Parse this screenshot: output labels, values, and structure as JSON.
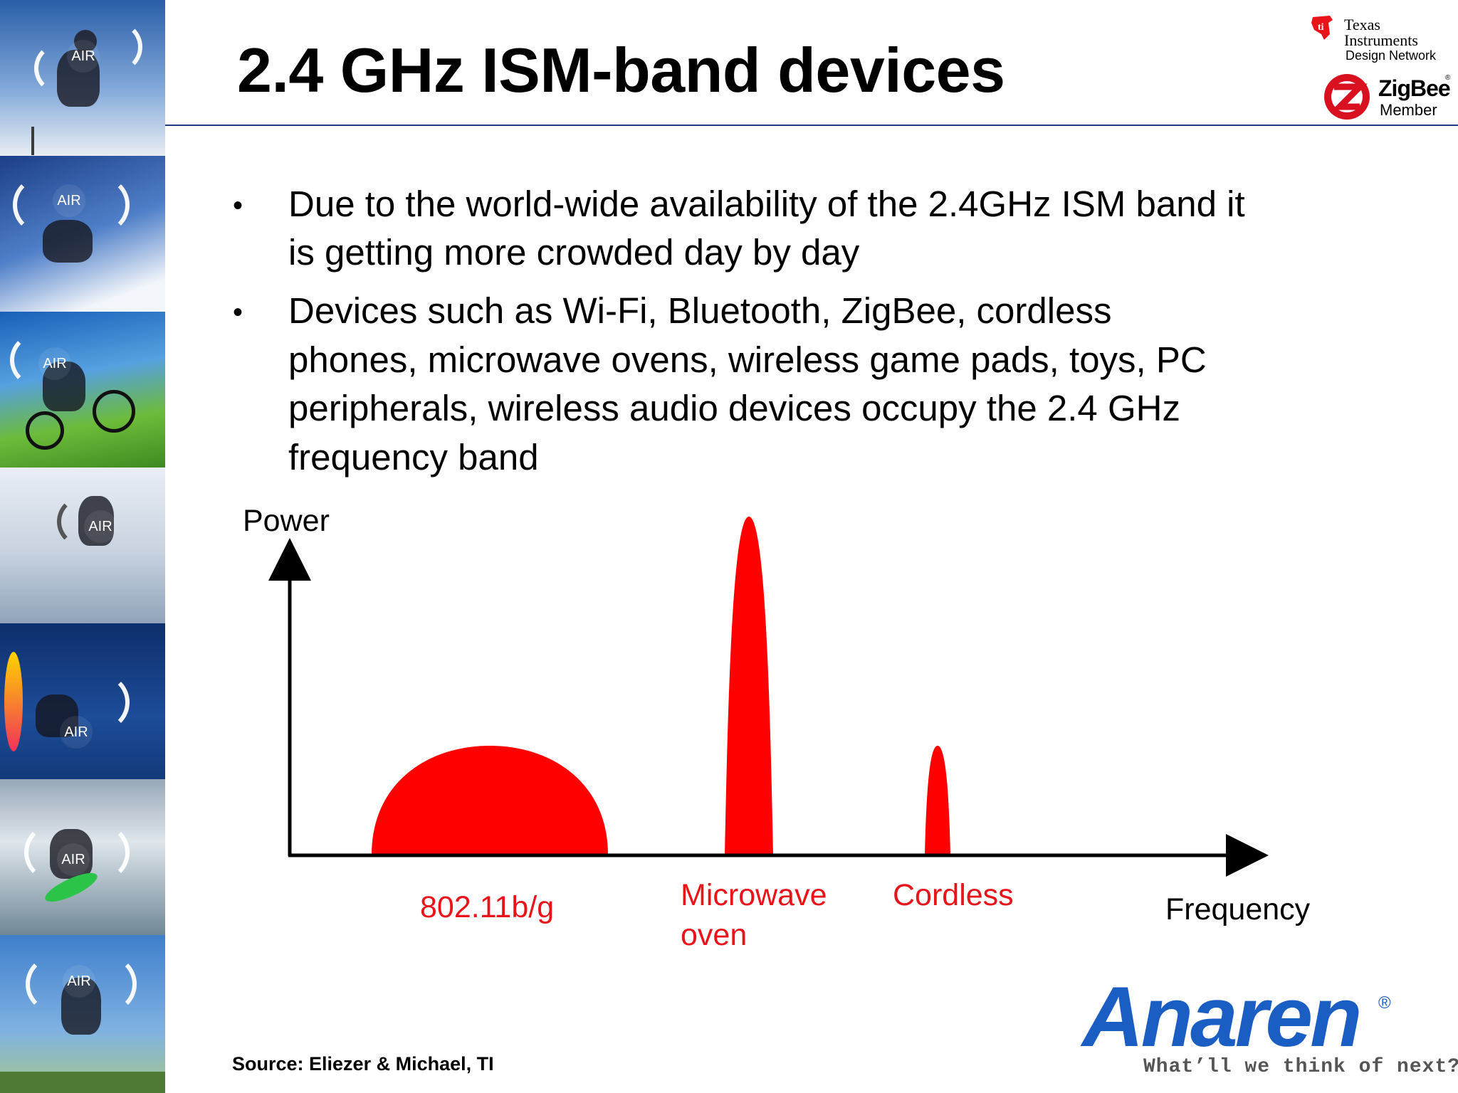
{
  "title": "2.4 GHz ISM-band devices",
  "bullets": [
    {
      "line1": "Due to the world-wide availability of the 2.4GHz ISM band it",
      "line2": "is getting more crowded day by day"
    },
    {
      "line1": "Devices such as Wi-Fi, Bluetooth, ZigBee, cordless",
      "line2": "phones, microwave ovens, wireless game pads, toys, PC",
      "line3": "peripherals, wireless audio devices occupy the 2.4 GHz",
      "line4": "frequency band"
    }
  ],
  "bullet_symbol": "•",
  "air_badge": "AIR",
  "diagram": {
    "y_axis_label": "Power",
    "x_axis_label": "Frequency",
    "fill_color": "#ff0000",
    "axis_color": "#000000",
    "signals": [
      {
        "label": "802.11b/g",
        "shape": "wide-dome"
      },
      {
        "label_line1": "Microwave",
        "label_line2": "oven",
        "shape": "tall-narrow-peak"
      },
      {
        "label": "Cordless",
        "shape": "short-narrow-peak"
      }
    ]
  },
  "logos": {
    "ti_line1": "Texas",
    "ti_line2": "Instruments",
    "ti_line3": "Design Network",
    "zigbee_name": "ZigBee",
    "zigbee_reg": "®",
    "zigbee_member": "Member",
    "anaren_name": "Anaren",
    "anaren_reg": "®",
    "anaren_tagline": "What’ll we think of next?®"
  },
  "source": "Source: Eliezer & Michael, TI",
  "colors": {
    "accent_red": "#e8141a",
    "anaren_blue": "#1a5ec4",
    "title_rule": "#1f3a78"
  }
}
